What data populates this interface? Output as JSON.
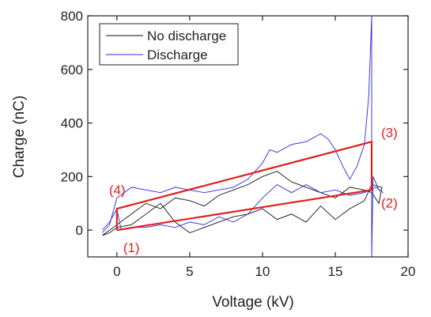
{
  "chart_data": {
    "type": "line",
    "xlabel": "Voltage (kV)",
    "ylabel": "Charge (nC)",
    "xlim": [
      -2,
      20
    ],
    "xticks": [
      0,
      5,
      10,
      15,
      20
    ],
    "ylim": [
      -100,
      800
    ],
    "yticks": [
      0,
      200,
      400,
      600,
      800
    ],
    "legend": "upper left",
    "series": [
      {
        "name": "No discharge",
        "color": "#111111",
        "x": [
          -1,
          -0.5,
          0,
          1,
          2,
          3,
          4,
          5,
          6,
          7,
          8,
          9,
          10,
          11,
          12,
          13,
          14,
          15,
          16,
          17,
          17.5,
          18,
          18.2,
          17.5,
          17,
          16,
          15,
          14,
          13,
          12,
          11,
          10,
          9,
          8,
          7,
          6,
          5,
          4,
          3,
          2,
          1,
          0,
          -0.5,
          -1
        ],
        "y": [
          -20,
          0,
          20,
          60,
          100,
          80,
          120,
          110,
          90,
          130,
          150,
          170,
          200,
          220,
          180,
          160,
          140,
          120,
          160,
          150,
          140,
          100,
          160,
          170,
          110,
          80,
          40,
          90,
          30,
          60,
          40,
          80,
          60,
          50,
          30,
          10,
          -10,
          30,
          100,
          60,
          20,
          10,
          -10,
          -20
        ]
      },
      {
        "name": "Discharge",
        "color": "#2a2ae0",
        "x": [
          -1,
          -0.5,
          0,
          0.5,
          1,
          2,
          3,
          4,
          5,
          6,
          7,
          8,
          9,
          10,
          10.5,
          11,
          12,
          13,
          14,
          14.5,
          15,
          15.5,
          16,
          16.5,
          17,
          17.3,
          17.5,
          17.5,
          17.6,
          18,
          18.3,
          17.8,
          17,
          16,
          15,
          14,
          13,
          12,
          11,
          10,
          9,
          8,
          7,
          6,
          5,
          4,
          3,
          2,
          1,
          0.3,
          0,
          -0.5,
          -1
        ],
        "y": [
          -10,
          20,
          120,
          140,
          160,
          150,
          140,
          160,
          150,
          140,
          150,
          160,
          190,
          250,
          300,
          290,
          320,
          330,
          360,
          340,
          300,
          240,
          190,
          240,
          320,
          500,
          800,
          -100,
          200,
          150,
          140,
          160,
          140,
          130,
          150,
          140,
          170,
          140,
          170,
          120,
          60,
          30,
          50,
          20,
          30,
          10,
          20,
          10,
          10,
          0,
          80,
          30,
          0
        ]
      }
    ],
    "outline": {
      "color": "#e02020",
      "x": [
        0,
        17.5,
        17.5,
        0,
        0
      ],
      "y": [
        0,
        150,
        330,
        80,
        0
      ]
    },
    "annotations": [
      {
        "text": "(1)"
      },
      {
        "text": "(2)"
      },
      {
        "text": "(3)"
      },
      {
        "text": "(4)"
      }
    ]
  }
}
